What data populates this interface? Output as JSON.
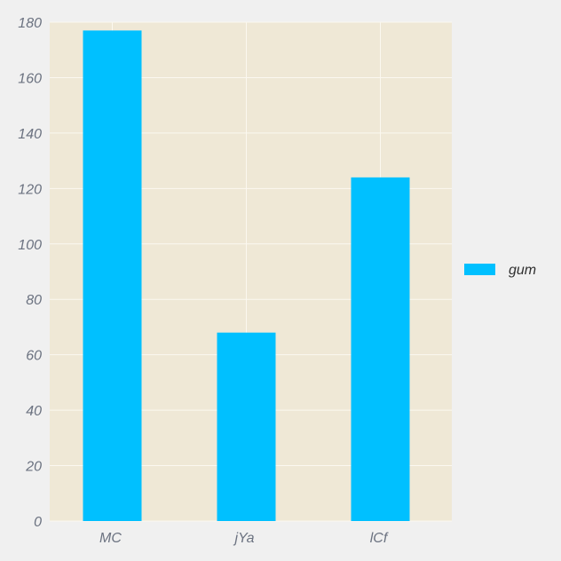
{
  "chart_data": {
    "type": "bar",
    "categories": [
      "MC",
      "jYa",
      "lCf"
    ],
    "series": [
      {
        "name": "gum",
        "values": [
          177,
          68,
          124
        ],
        "color": "#00c0ff"
      }
    ],
    "ylim": [
      0,
      180
    ],
    "yticks": [
      0,
      20,
      40,
      60,
      80,
      100,
      120,
      140,
      160,
      180
    ],
    "grid": true,
    "legend_position": "right",
    "colors": {
      "background": "#f0f0f0",
      "plot_background": "#efe8d6",
      "grid": "#fbf8f0",
      "tick_text": "#6b7280",
      "legend_text": "#2f2f2f"
    }
  }
}
